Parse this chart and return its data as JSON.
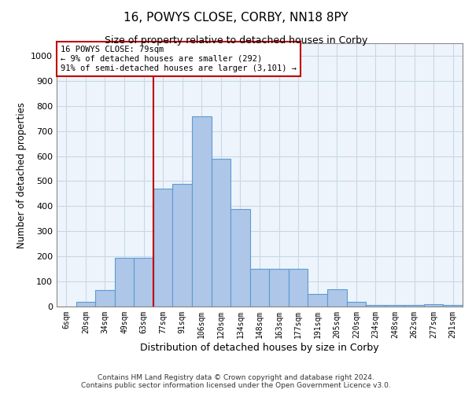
{
  "title": "16, POWYS CLOSE, CORBY, NN18 8PY",
  "subtitle": "Size of property relative to detached houses in Corby",
  "xlabel": "Distribution of detached houses by size in Corby",
  "ylabel": "Number of detached properties",
  "categories": [
    "6sqm",
    "20sqm",
    "34sqm",
    "49sqm",
    "63sqm",
    "77sqm",
    "91sqm",
    "106sqm",
    "120sqm",
    "134sqm",
    "148sqm",
    "163sqm",
    "177sqm",
    "191sqm",
    "205sqm",
    "220sqm",
    "234sqm",
    "248sqm",
    "262sqm",
    "277sqm",
    "291sqm"
  ],
  "values": [
    0,
    20,
    65,
    195,
    195,
    470,
    490,
    760,
    590,
    390,
    150,
    150,
    150,
    50,
    70,
    20,
    5,
    5,
    5,
    10,
    5
  ],
  "bar_color": "#aec6e8",
  "bar_edge_color": "#5b9bd5",
  "vline_x_index": 4.5,
  "vline_color": "#c00000",
  "annotation_text": "16 POWYS CLOSE: 79sqm\n← 9% of detached houses are smaller (292)\n91% of semi-detached houses are larger (3,101) →",
  "annotation_box_color": "#ffffff",
  "annotation_box_edge_color": "#c00000",
  "grid_color": "#c8d8e8",
  "background_color": "#eef4fb",
  "footer_text": "Contains HM Land Registry data © Crown copyright and database right 2024.\nContains public sector information licensed under the Open Government Licence v3.0.",
  "ylim": [
    0,
    1050
  ],
  "yticks": [
    0,
    100,
    200,
    300,
    400,
    500,
    600,
    700,
    800,
    900,
    1000
  ],
  "title_fontsize": 11,
  "subtitle_fontsize": 9
}
